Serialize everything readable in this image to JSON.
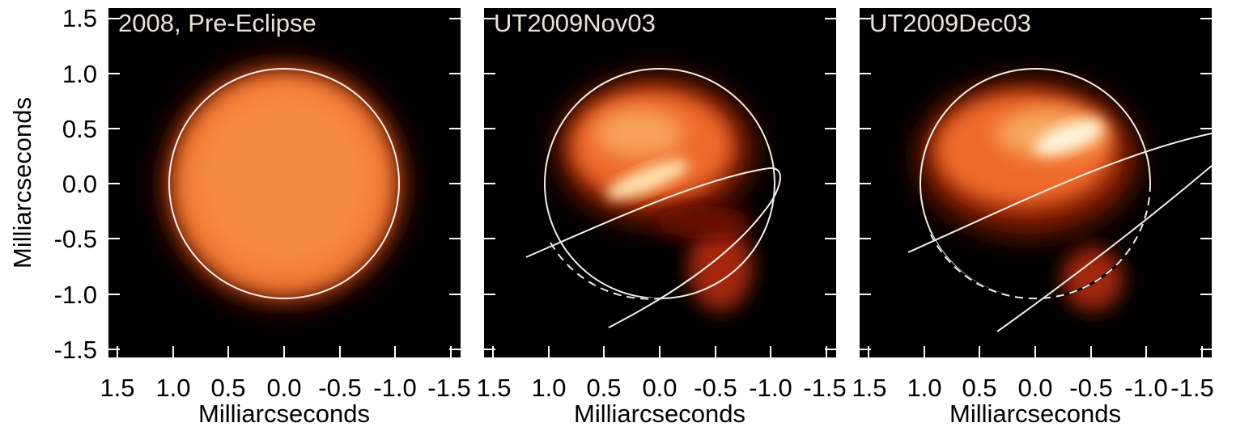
{
  "figure": {
    "y_axis_label": "Milliarcseconds",
    "x_axis_label": "Milliarcseconds",
    "y_tick_labels": [
      "1.5",
      "1.0",
      "0.5",
      "0.0",
      "-0.5",
      "-1.0",
      "-1.5"
    ],
    "x_tick_labels": [
      "1.5",
      "1.0",
      "0.5",
      "0.0",
      "-0.5",
      "-1.0",
      "-1.5"
    ],
    "colors": {
      "background": "#000000",
      "disk_outline": "#f3efe6",
      "hot": "#fff6e0",
      "warm": "#f5843a"
    }
  },
  "panels": [
    {
      "title": "2008, Pre-Eclipse"
    },
    {
      "title": "UT2009Nov03"
    },
    {
      "title": "UT2009Dec03"
    }
  ]
}
